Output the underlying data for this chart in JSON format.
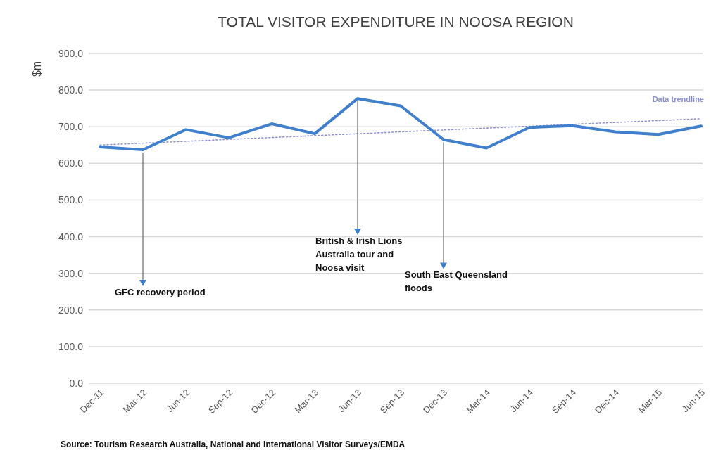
{
  "chart_data": {
    "type": "line",
    "title": "TOTAL VISITOR EXPENDITURE IN NOOSA REGION",
    "ylabel": "$m",
    "categories": [
      "Dec-11",
      "Mar-12",
      "Jun-12",
      "Sep-12",
      "Dec-12",
      "Mar-13",
      "Jun-13",
      "Sep-13",
      "Dec-13",
      "Mar-14",
      "Jun-14",
      "Sep-14",
      "Dec-14",
      "Mar-15",
      "Jun-15"
    ],
    "series": [
      {
        "color": "#3f7fcb",
        "values": [
          645,
          637,
          692,
          670,
          708,
          681,
          777,
          757,
          665,
          642,
          698,
          703,
          686,
          679,
          702
        ]
      },
      {
        "name": "Data trendline",
        "type": "line",
        "color": "#8c90cf",
        "line_style": "dotted",
        "x": [
          "Dec-11",
          "Jun-15"
        ],
        "values": [
          650,
          722
        ]
      }
    ],
    "ylim": [
      0,
      900
    ],
    "yticks": [
      {
        "value": 0,
        "label": "0.0"
      },
      {
        "value": 100,
        "label": "100.0"
      },
      {
        "value": 200,
        "label": "200.0"
      },
      {
        "value": 300,
        "label": "300.0"
      },
      {
        "value": 400,
        "label": "400.0"
      },
      {
        "value": 500,
        "label": "500.0"
      },
      {
        "value": 600,
        "label": "600.0"
      },
      {
        "value": 700,
        "label": "700.0"
      },
      {
        "value": 800,
        "label": "800.0"
      },
      {
        "value": 900,
        "label": "900.0"
      }
    ],
    "grid": "y",
    "annotations": [
      {
        "text": "GFC recovery period",
        "x": "Mar-12",
        "y": 637
      },
      {
        "text": "British & Irish Lions Australia tour and Noosa visit",
        "x": "Jun-13",
        "y": 777
      },
      {
        "text": "South East Queensland floods",
        "x": "Dec-13",
        "y": 665
      },
      "Source: Tourism Research Australia, National and International Visitor Surveys/EMDA"
    ]
  }
}
